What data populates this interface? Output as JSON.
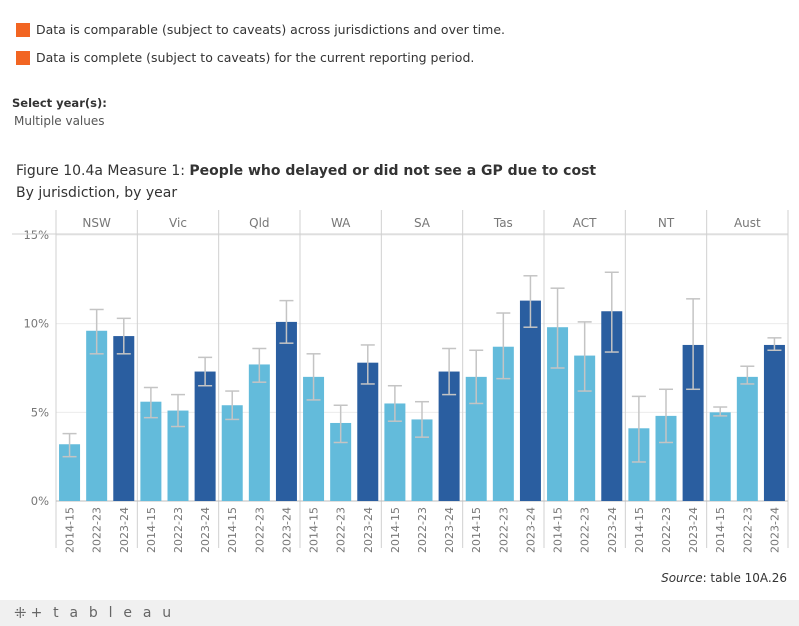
{
  "legend": [
    {
      "text": "Data is comparable (subject to caveats) across jurisdictions and over time.",
      "color": "#f26522"
    },
    {
      "text": "Data is complete (subject to caveats) for the current reporting period.",
      "color": "#f26522"
    }
  ],
  "filter": {
    "label": "Select year(s):",
    "value": "Multiple values"
  },
  "figure": {
    "title_prefix": "Figure 10.4a Measure 1: ",
    "title_bold": "People who delayed or did not see a GP due to cost",
    "subtitle": "By jurisdiction, by year"
  },
  "source": {
    "label": "Source",
    "text": ": table 10A.26"
  },
  "footer": {
    "logo_mark": "⁜",
    "logo_text": "+ t a b l e a u"
  },
  "chart_data": {
    "type": "bar",
    "panels": [
      "NSW",
      "Vic",
      "Qld",
      "WA",
      "SA",
      "Tas",
      "ACT",
      "NT",
      "Aust"
    ],
    "categories": [
      "2014-15",
      "2022-23",
      "2023-24"
    ],
    "y_ticks": [
      "15%",
      "10%",
      "5%",
      "0%"
    ],
    "ylim": [
      0,
      15
    ],
    "grid": true,
    "colors": {
      "earlier": "#63bbdb",
      "current": "#2a5ea0",
      "error_bar": "#c4c4c4"
    },
    "series": [
      {
        "jurisdiction": "NSW",
        "values": [
          3.2,
          9.6,
          9.3
        ],
        "ci_low": [
          2.5,
          8.3,
          8.3
        ],
        "ci_high": [
          3.8,
          10.8,
          10.3
        ]
      },
      {
        "jurisdiction": "Vic",
        "values": [
          5.6,
          5.1,
          7.3
        ],
        "ci_low": [
          4.7,
          4.2,
          6.5
        ],
        "ci_high": [
          6.4,
          6.0,
          8.1
        ]
      },
      {
        "jurisdiction": "Qld",
        "values": [
          5.4,
          7.7,
          10.1
        ],
        "ci_low": [
          4.6,
          6.7,
          8.9
        ],
        "ci_high": [
          6.2,
          8.6,
          11.3
        ]
      },
      {
        "jurisdiction": "WA",
        "values": [
          7.0,
          4.4,
          7.8
        ],
        "ci_low": [
          5.7,
          3.3,
          6.6
        ],
        "ci_high": [
          8.3,
          5.4,
          8.8
        ]
      },
      {
        "jurisdiction": "SA",
        "values": [
          5.5,
          4.6,
          7.3
        ],
        "ci_low": [
          4.5,
          3.6,
          6.0
        ],
        "ci_high": [
          6.5,
          5.6,
          8.6
        ]
      },
      {
        "jurisdiction": "Tas",
        "values": [
          7.0,
          8.7,
          11.3
        ],
        "ci_low": [
          5.5,
          6.9,
          9.8
        ],
        "ci_high": [
          8.5,
          10.6,
          12.7
        ]
      },
      {
        "jurisdiction": "ACT",
        "values": [
          9.8,
          8.2,
          10.7
        ],
        "ci_low": [
          7.5,
          6.2,
          8.4
        ],
        "ci_high": [
          12.0,
          10.1,
          12.9
        ]
      },
      {
        "jurisdiction": "NT",
        "values": [
          4.1,
          4.8,
          8.8
        ],
        "ci_low": [
          2.2,
          3.3,
          6.3
        ],
        "ci_high": [
          5.9,
          6.3,
          11.4
        ]
      },
      {
        "jurisdiction": "Aust",
        "values": [
          5.0,
          7.0,
          8.8
        ],
        "ci_low": [
          4.8,
          6.6,
          8.5
        ],
        "ci_high": [
          5.3,
          7.6,
          9.2
        ]
      }
    ]
  }
}
